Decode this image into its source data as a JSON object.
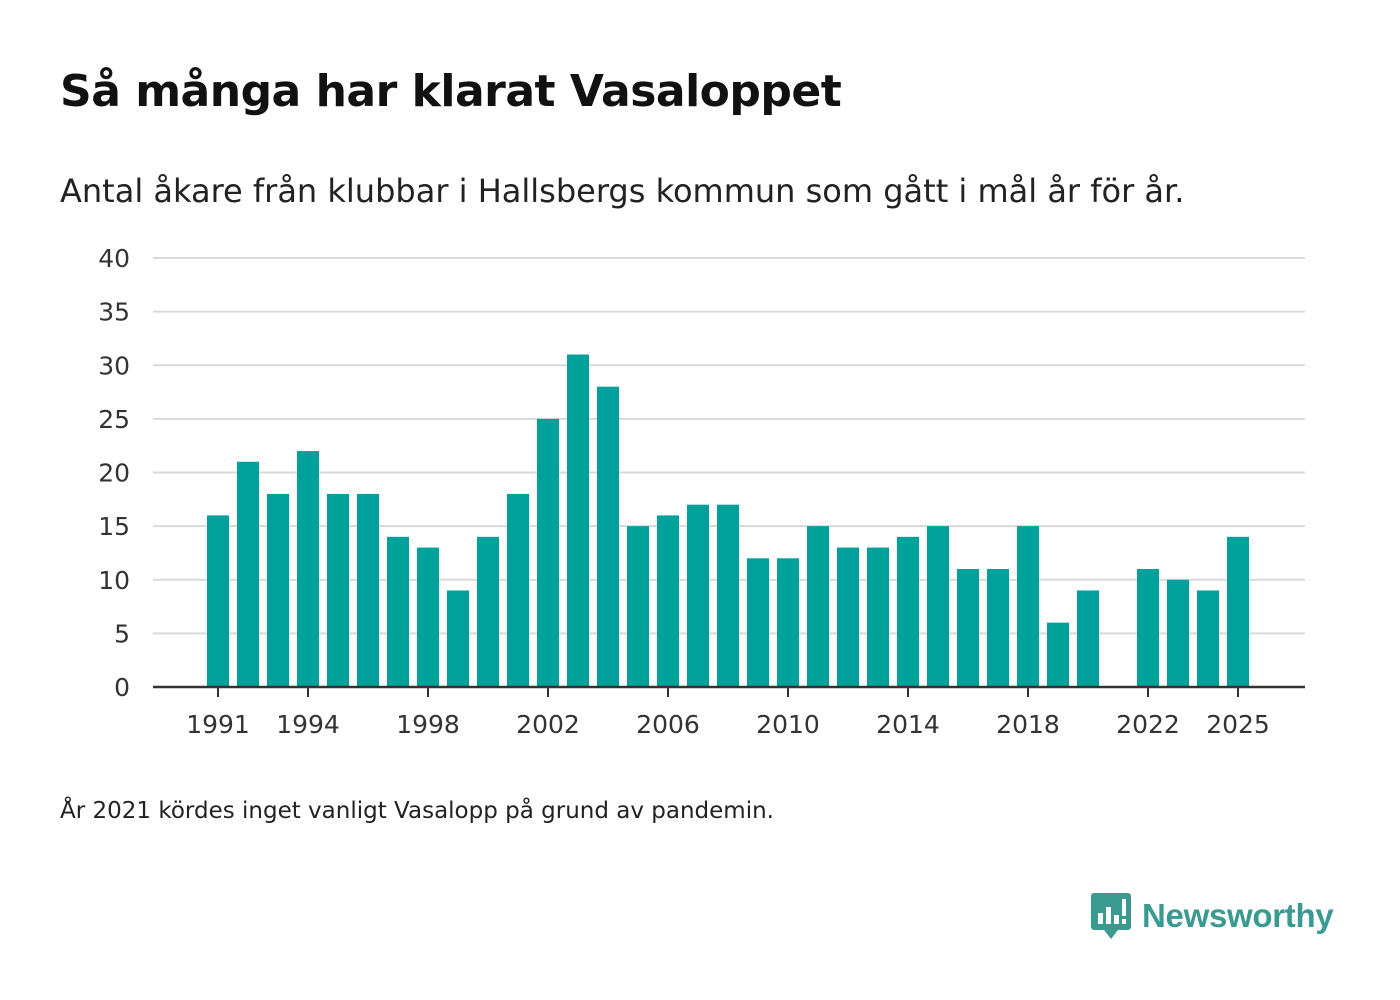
{
  "title": "Så många har klarat Vasaloppet",
  "subtitle": "Antal åkare från klubbar i Hallsbergs kommun som gått i mål år för år.",
  "note": "År 2021 kördes inget vanligt Vasalopp på grund av pandemin.",
  "brand": {
    "name": "Newsworthy",
    "icon": "newsworthy-logo-icon",
    "color": "#3a9a92"
  },
  "colors": {
    "bar": "#00a19a",
    "grid": "#d9d9d9",
    "axis": "#333333"
  },
  "chart_data": {
    "type": "bar",
    "title": "Så många har klarat Vasaloppet",
    "xlabel": "",
    "ylabel": "",
    "ylim": [
      0,
      40
    ],
    "yticks": [
      0,
      5,
      10,
      15,
      20,
      25,
      30,
      35,
      40
    ],
    "xticks": [
      1991,
      1994,
      1998,
      2002,
      2006,
      2010,
      2014,
      2018,
      2022,
      2025
    ],
    "grid": true,
    "categories": [
      1991,
      1992,
      1993,
      1994,
      1995,
      1996,
      1997,
      1998,
      1999,
      2000,
      2001,
      2002,
      2003,
      2004,
      2005,
      2006,
      2007,
      2008,
      2009,
      2010,
      2011,
      2012,
      2013,
      2014,
      2015,
      2016,
      2017,
      2018,
      2019,
      2020,
      2021,
      2022,
      2023,
      2024,
      2025
    ],
    "values": [
      16,
      21,
      18,
      22,
      18,
      18,
      14,
      13,
      9,
      14,
      18,
      25,
      31,
      28,
      15,
      16,
      17,
      17,
      12,
      12,
      15,
      13,
      13,
      14,
      15,
      11,
      11,
      15,
      6,
      9,
      null,
      11,
      10,
      9,
      14
    ]
  }
}
